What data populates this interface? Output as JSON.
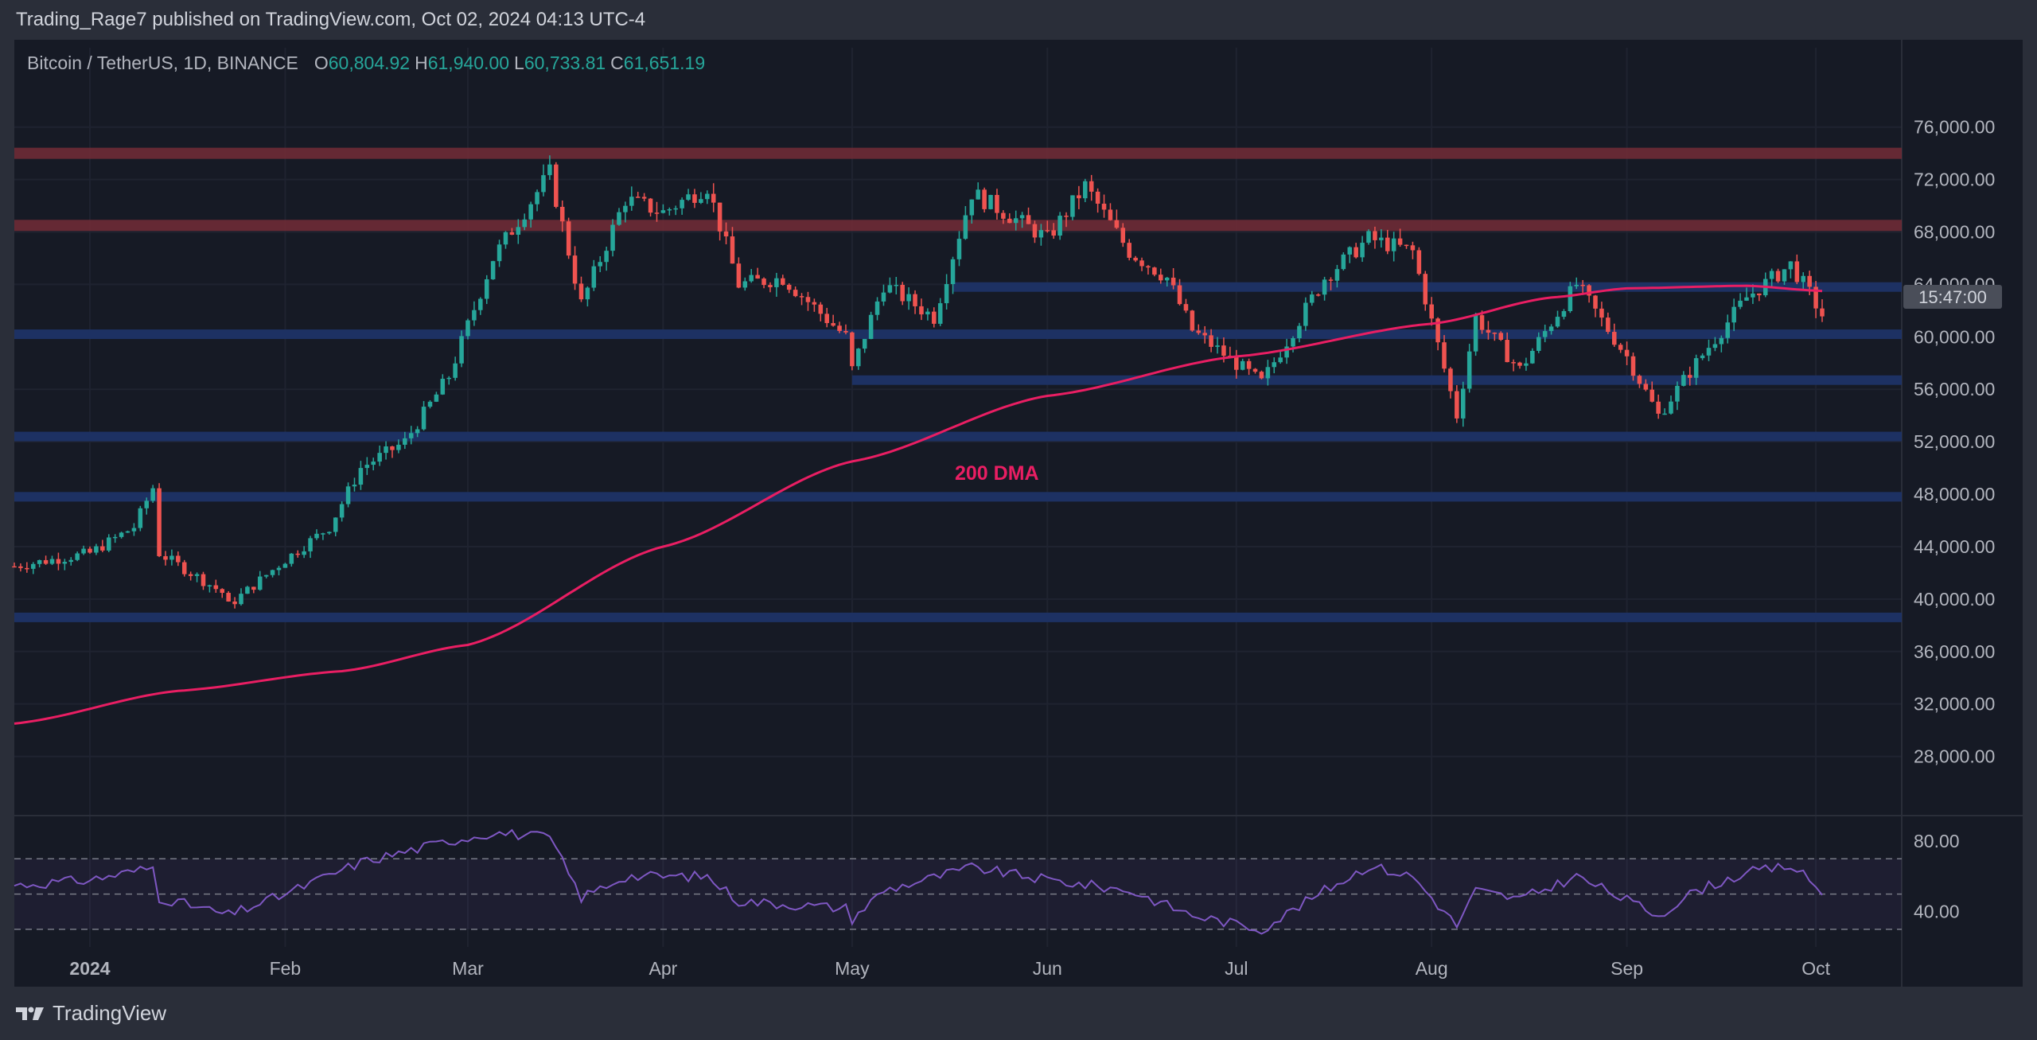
{
  "header": {
    "publish_text": "Trading_Rage7 published on TradingView.com, Oct 02, 2024 04:13 UTC-4"
  },
  "legend": {
    "symbol": "Bitcoin / TetherUS, 1D, BINANCE",
    "o_label": "O",
    "o_value": "60,804.92",
    "h_label": "H",
    "h_value": "61,940.00",
    "l_label": "L",
    "l_value": "60,733.81",
    "c_label": "C",
    "c_value": "61,651.19"
  },
  "price_tag": "15:47:00",
  "annotation": "200 DMA",
  "footer": {
    "brand": "TradingView"
  },
  "colors": {
    "up": "#26a69a",
    "down": "#ef5350",
    "ma": "#e91e63",
    "resistance": "#6e2b36",
    "support": "#1e3366",
    "rsi": "#7e57c2"
  },
  "chart_data": [
    {
      "type": "candlestick",
      "title": "Bitcoin / TetherUS, 1D, BINANCE",
      "x_tick_labels": [
        "2024",
        "Feb",
        "Mar",
        "Apr",
        "May",
        "Jun",
        "Jul",
        "Aug",
        "Sep",
        "Oct"
      ],
      "y_tick_labels": [
        "76,000.00",
        "72,000.00",
        "68,000.00",
        "64,000.00",
        "60,000.00",
        "56,000.00",
        "52,000.00",
        "48,000.00",
        "44,000.00",
        "40,000.00",
        "36,000.00",
        "32,000.00",
        "28,000.00"
      ],
      "ylim": [
        25000,
        77500
      ],
      "grid": true,
      "resistance_zones": [
        74000,
        68500
      ],
      "support_zones": [
        63800,
        60200,
        56700,
        52400,
        47800,
        38600
      ],
      "price_points": [
        [
          "2023-12-20",
          42500
        ],
        [
          "2024-01-01",
          43500
        ],
        [
          "2024-01-08",
          45500
        ],
        [
          "2024-01-11",
          48500
        ],
        [
          "2024-01-12",
          43500
        ],
        [
          "2024-01-22",
          40500
        ],
        [
          "2024-01-23",
          39500
        ],
        [
          "2024-02-01",
          43000
        ],
        [
          "2024-02-08",
          45500
        ],
        [
          "2024-02-13",
          50000
        ],
        [
          "2024-02-20",
          52000
        ],
        [
          "2024-02-27",
          57000
        ],
        [
          "2024-03-05",
          66000
        ],
        [
          "2024-03-14",
          72500
        ],
        [
          "2024-03-19",
          62500
        ],
        [
          "2024-03-26",
          70500
        ],
        [
          "2024-04-01",
          69500
        ],
        [
          "2024-04-08",
          71500
        ],
        [
          "2024-04-13",
          64000
        ],
        [
          "2024-04-20",
          64500
        ],
        [
          "2024-04-30",
          60000
        ],
        [
          "2024-05-01",
          57500
        ],
        [
          "2024-05-06",
          64000
        ],
        [
          "2024-05-14",
          61500
        ],
        [
          "2024-05-20",
          71000
        ],
        [
          "2024-06-01",
          67500
        ],
        [
          "2024-06-07",
          71500
        ],
        [
          "2024-06-14",
          66500
        ],
        [
          "2024-06-20",
          64500
        ],
        [
          "2024-06-24",
          60500
        ],
        [
          "2024-07-05",
          56500
        ],
        [
          "2024-07-15",
          64500
        ],
        [
          "2024-07-22",
          67500
        ],
        [
          "2024-07-29",
          66500
        ],
        [
          "2024-08-05",
          54000
        ],
        [
          "2024-08-08",
          61500
        ],
        [
          "2024-08-15",
          57500
        ],
        [
          "2024-08-24",
          64000
        ],
        [
          "2024-09-01",
          58500
        ],
        [
          "2024-09-06",
          54000
        ],
        [
          "2024-09-12",
          58000
        ],
        [
          "2024-09-20",
          63000
        ],
        [
          "2024-09-27",
          65500
        ],
        [
          "2024-09-30",
          63300
        ],
        [
          "2024-10-02",
          61651
        ]
      ],
      "ma_points": [
        [
          "2023-12-20",
          30500
        ],
        [
          "2024-01-15",
          33000
        ],
        [
          "2024-02-10",
          34500
        ],
        [
          "2024-03-01",
          36500
        ],
        [
          "2024-04-01",
          44000
        ],
        [
          "2024-05-01",
          50500
        ],
        [
          "2024-06-01",
          55500
        ],
        [
          "2024-07-01",
          58500
        ],
        [
          "2024-08-01",
          61000
        ],
        [
          "2024-08-20",
          63000
        ],
        [
          "2024-09-01",
          63700
        ],
        [
          "2024-09-20",
          63900
        ],
        [
          "2024-10-02",
          63500
        ]
      ]
    },
    {
      "type": "line",
      "title": "RSI",
      "y_tick_labels": [
        "80.00",
        "40.00"
      ],
      "ylim": [
        20,
        90
      ],
      "bands": [
        70,
        50,
        30
      ],
      "points": [
        [
          "2023-12-20",
          55
        ],
        [
          "2024-01-01",
          58
        ],
        [
          "2024-01-11",
          65
        ],
        [
          "2024-01-12",
          48
        ],
        [
          "2024-01-23",
          38
        ],
        [
          "2024-02-01",
          50
        ],
        [
          "2024-02-13",
          68
        ],
        [
          "2024-02-20",
          74
        ],
        [
          "2024-02-27",
          80
        ],
        [
          "2024-03-05",
          85
        ],
        [
          "2024-03-14",
          82
        ],
        [
          "2024-03-19",
          48
        ],
        [
          "2024-03-26",
          60
        ],
        [
          "2024-04-08",
          60
        ],
        [
          "2024-04-13",
          46
        ],
        [
          "2024-04-30",
          42
        ],
        [
          "2024-05-01",
          36
        ],
        [
          "2024-05-06",
          52
        ],
        [
          "2024-05-20",
          65
        ],
        [
          "2024-06-01",
          58
        ],
        [
          "2024-06-14",
          52
        ],
        [
          "2024-06-24",
          38
        ],
        [
          "2024-07-05",
          30
        ],
        [
          "2024-07-15",
          52
        ],
        [
          "2024-07-22",
          66
        ],
        [
          "2024-07-29",
          60
        ],
        [
          "2024-08-05",
          32
        ],
        [
          "2024-08-08",
          52
        ],
        [
          "2024-08-15",
          47
        ],
        [
          "2024-08-24",
          60
        ],
        [
          "2024-09-06",
          38
        ],
        [
          "2024-09-12",
          52
        ],
        [
          "2024-09-20",
          62
        ],
        [
          "2024-09-27",
          66
        ],
        [
          "2024-09-30",
          58
        ],
        [
          "2024-10-02",
          50
        ]
      ]
    }
  ]
}
